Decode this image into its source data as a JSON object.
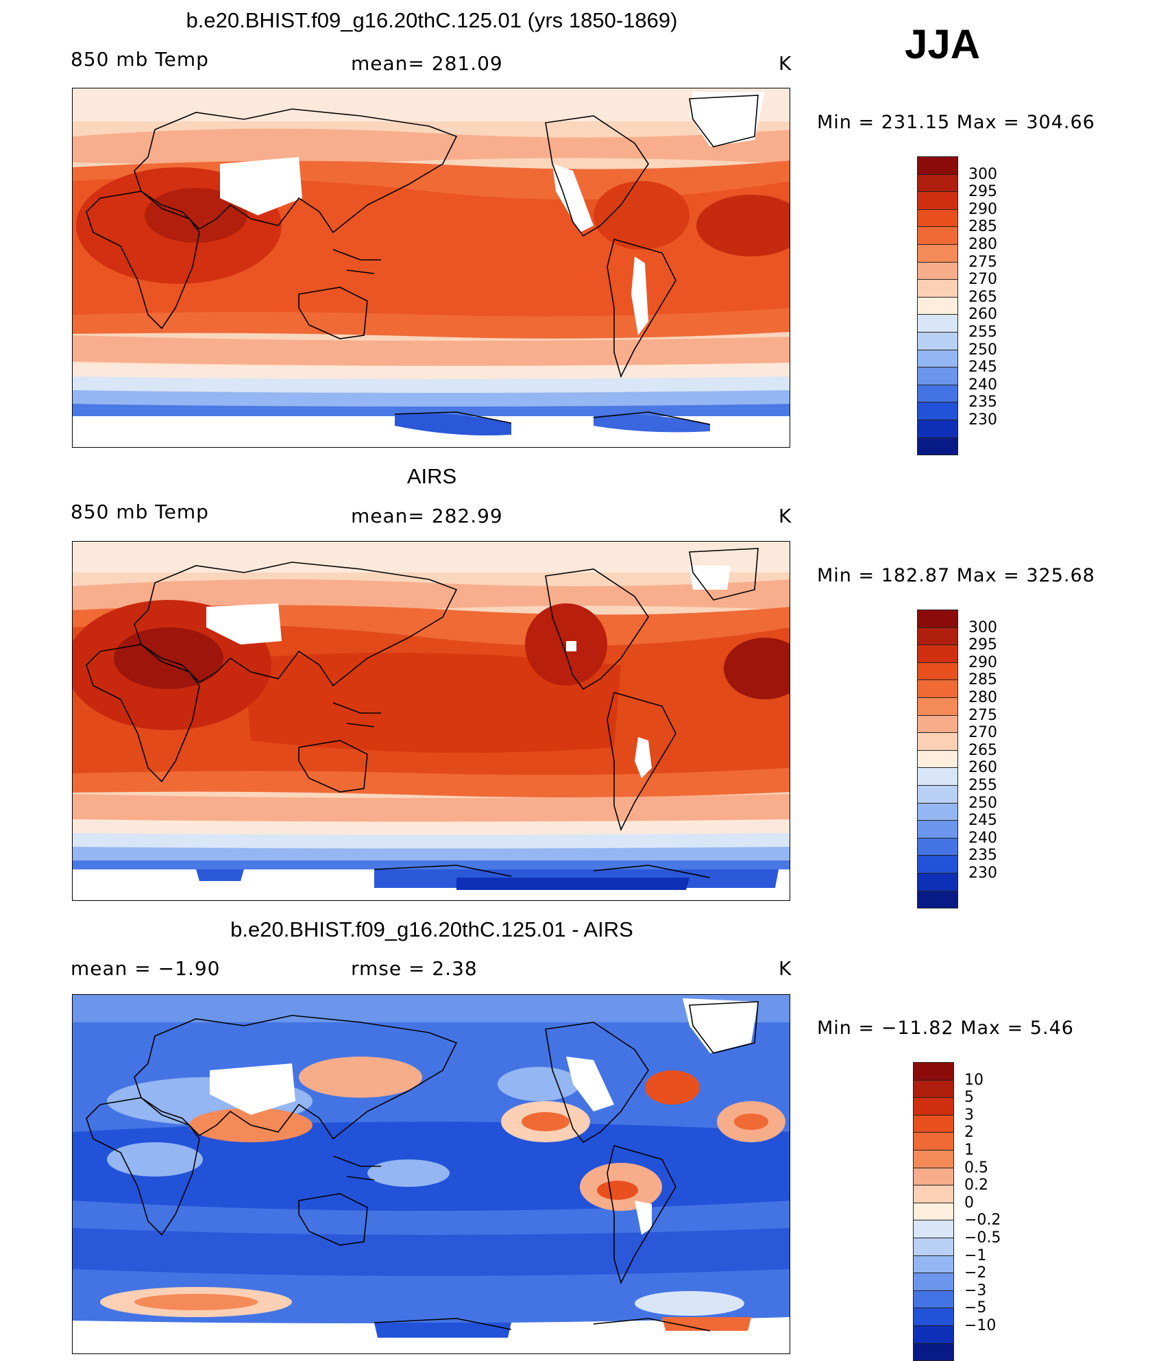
{
  "season": "JJA",
  "unit": "K",
  "panels": [
    {
      "title": "b.e20.BHIST.f09_g16.20thC.125.01 (yrs 1850-1869)",
      "left_label": "850 mb Temp",
      "center_label": "mean= 281.09",
      "right_label": "K",
      "minmax": "Min  =  231.15  Max  =  304.66",
      "kind": "abs"
    },
    {
      "title": "AIRS",
      "left_label": "850 mb Temp",
      "center_label": "mean= 282.99",
      "right_label": "K",
      "minmax": "Min  =  182.87  Max  =  325.68",
      "kind": "abs"
    },
    {
      "title": "b.e20.BHIST.f09_g16.20thC.125.01 - AIRS",
      "left_label": "mean  =    −1.90",
      "center_label": "rmse  =     2.38",
      "right_label": "K",
      "minmax": "Min  =  −11.82  Max  =      5.46",
      "kind": "diff"
    }
  ],
  "colorbar_abs": {
    "labels": [
      "300",
      "295",
      "290",
      "285",
      "280",
      "275",
      "270",
      "265",
      "260",
      "255",
      "250",
      "245",
      "240",
      "235",
      "230"
    ],
    "colors": [
      "#8b0a0a",
      "#b01e0e",
      "#d0300f",
      "#e8501e",
      "#f06a35",
      "#f48a58",
      "#f8ad8a",
      "#fbd0b5",
      "#fdeedd",
      "#d8e6f8",
      "#b9d0f5",
      "#94b6f2",
      "#6b96ec",
      "#4474e4",
      "#2252d8",
      "#0e30b8",
      "#081a85"
    ]
  },
  "colorbar_diff": {
    "labels": [
      "10",
      "5",
      "3",
      "2",
      "1",
      "0.5",
      "0.2",
      "0",
      "−0.2",
      "−0.5",
      "−1",
      "−2",
      "−3",
      "−5",
      "−10"
    ],
    "colors": [
      "#8b0a0a",
      "#b01e0e",
      "#d0300f",
      "#e8501e",
      "#f06a35",
      "#f48a58",
      "#f8ad8a",
      "#fbd0b5",
      "#fdeedd",
      "#d8e6f8",
      "#b9d0f5",
      "#94b6f2",
      "#6b96ec",
      "#4474e4",
      "#2252d8",
      "#0e30b8",
      "#081a85"
    ]
  }
}
